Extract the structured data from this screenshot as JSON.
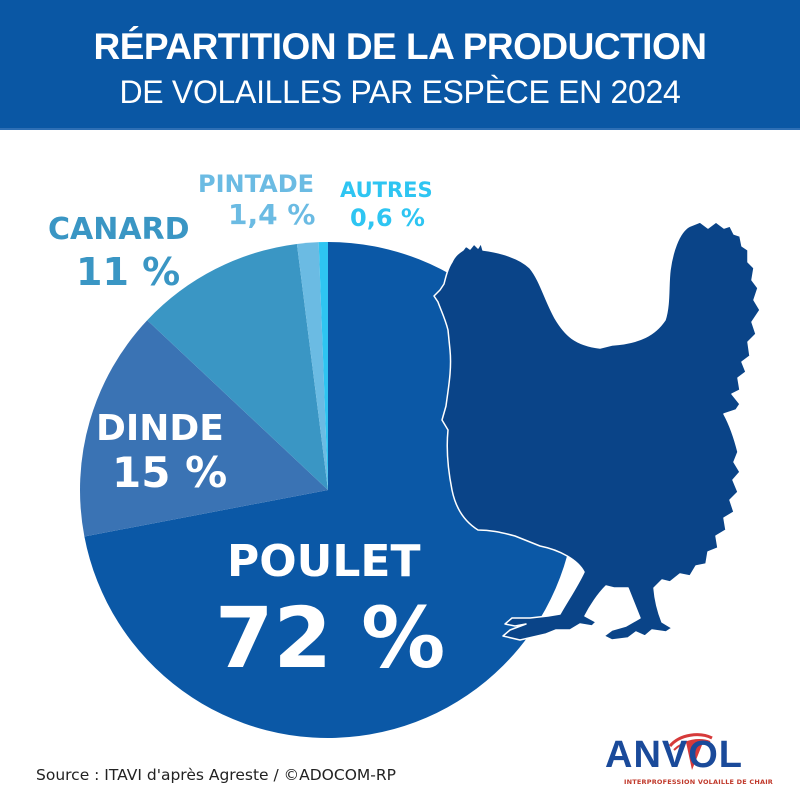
{
  "header": {
    "title_line1": "RÉPARTITION DE LA PRODUCTION",
    "title_line2": "DE VOLAILLES PAR ESPÈCE EN 2024",
    "background_color": "#0a57a4"
  },
  "labels": {
    "poulet": {
      "name": "POULET",
      "value": "72 %",
      "color": "#ffffff"
    },
    "dinde": {
      "name": "DINDE",
      "value": "15 %",
      "color": "#ffffff"
    },
    "canard": {
      "name": "CANARD",
      "value": "11 %",
      "color": "#3a96c4"
    },
    "pintade": {
      "name": "PINTADE",
      "value": "1,4 %",
      "color": "#6bbbe3"
    },
    "autres": {
      "name": "AUTRES",
      "value": "0,6 %",
      "color": "#2ec5f2"
    }
  },
  "footer": {
    "source": "Source : ITAVI d'après Agreste / ©ADOCOM-RP",
    "logo_text": "ANVOL",
    "logo_subtitle": "INTERPROFESSION VOLAILLE DE CHAIR"
  },
  "illustration": {
    "icon": "chicken-silhouette-icon",
    "color": "#0a4488"
  },
  "chart_data": {
    "type": "pie",
    "title": "Répartition de la production de volailles par espèce en 2024",
    "categories": [
      "Poulet",
      "Dinde",
      "Canard",
      "Pintade",
      "Autres"
    ],
    "values": [
      72,
      15,
      11,
      1.4,
      0.6
    ],
    "unit": "%",
    "colors": [
      "#0b58a6",
      "#3a73b4",
      "#3a96c4",
      "#6bbbe3",
      "#2ec5f2"
    ],
    "start_angle": "12 o'clock, clockwise",
    "legend": "none (direct labels)",
    "source": "ITAVI d'après Agreste"
  }
}
